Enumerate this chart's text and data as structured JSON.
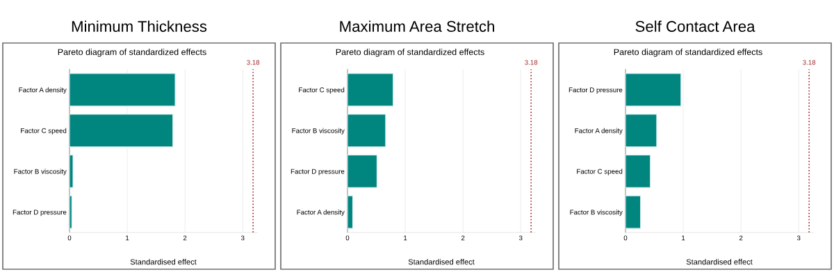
{
  "chart_data": [
    {
      "type": "bar",
      "orientation": "horizontal",
      "title": "Minimum Thickness",
      "subtitle": "Pareto diagram of standardized effects",
      "xlabel": "Standardised effect",
      "categories": [
        "Factor A density",
        "Factor C speed",
        "Factor B viscosity",
        "Factor D pressure"
      ],
      "values": [
        1.83,
        1.79,
        0.06,
        0.04
      ],
      "color": "#00857f",
      "xlim": [
        0,
        3.25
      ],
      "xticks": [
        0,
        1,
        2,
        3
      ],
      "grid": "x",
      "ref_lines": [
        {
          "axis": "x",
          "value": 3.18,
          "label": "3.18",
          "color": "#a52a2a",
          "line_style": "dotted"
        }
      ]
    },
    {
      "type": "bar",
      "orientation": "horizontal",
      "title": "Maximum Area Stretch",
      "subtitle": "Pareto diagram of standardized effects",
      "xlabel": "Standardised effect",
      "categories": [
        "Factor C speed",
        "Factor B viscosity",
        "Factor D pressure",
        "Factor A density"
      ],
      "values": [
        0.79,
        0.66,
        0.51,
        0.09
      ],
      "color": "#00857f",
      "xlim": [
        0,
        3.25
      ],
      "xticks": [
        0,
        1,
        2,
        3
      ],
      "grid": "x",
      "ref_lines": [
        {
          "axis": "x",
          "value": 3.18,
          "label": "3.18",
          "color": "#a52a2a",
          "line_style": "dotted"
        }
      ]
    },
    {
      "type": "bar",
      "orientation": "horizontal",
      "title": "Self Contact Area",
      "subtitle": "Pareto diagram of standardized effects",
      "xlabel": "Standardised effect",
      "categories": [
        "Factor D pressure",
        "Factor A density",
        "Factor C speed",
        "Factor B viscosity"
      ],
      "values": [
        0.96,
        0.54,
        0.43,
        0.26
      ],
      "color": "#00857f",
      "xlim": [
        0,
        3.25
      ],
      "xticks": [
        0,
        1,
        2,
        3
      ],
      "grid": "x",
      "ref_lines": [
        {
          "axis": "x",
          "value": 3.18,
          "label": "3.18",
          "color": "#a52a2a",
          "line_style": "dotted"
        }
      ]
    }
  ]
}
